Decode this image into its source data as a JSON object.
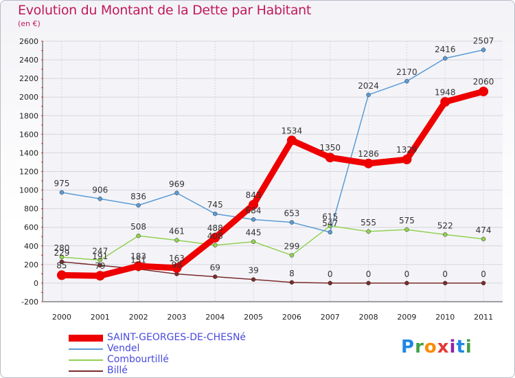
{
  "header": {
    "title": "Evolution du Montant de la Dette par Habitant",
    "subtitle": "(en €)"
  },
  "logo": {
    "text": "Proxiti",
    "colors": [
      "#1e88e5",
      "#43a047",
      "#fb8c00",
      "#e53935",
      "#8e24aa",
      "#1e88e5",
      "#43a047"
    ]
  },
  "chart_data": {
    "type": "line",
    "title": "Evolution du Montant de la Dette par Habitant",
    "subtitle": "(en €)",
    "xlabel": "",
    "ylabel": "",
    "x": [
      "2000",
      "2001",
      "2002",
      "2003",
      "2004",
      "2005",
      "2006",
      "2007",
      "2008",
      "2009",
      "2010",
      "2011"
    ],
    "ylim": [
      -200,
      2600
    ],
    "yticks": [
      -200,
      0,
      200,
      400,
      600,
      800,
      1000,
      1200,
      1400,
      1600,
      1800,
      2000,
      2200,
      2400,
      2600
    ],
    "grid": true,
    "legend": "bottom-left",
    "series": [
      {
        "name": "SAINT-GEORGES-DE-CHESNé",
        "color": "#ee0000",
        "values": [
          85,
          79,
          183,
          163,
          488,
          843,
          1534,
          1350,
          1286,
          1329,
          1948,
          2060
        ],
        "labels": [
          "85",
          "79",
          "183",
          "163",
          "488",
          "843",
          "1534",
          "1350",
          "1286",
          "1329",
          "1948",
          "2060"
        ]
      },
      {
        "name": "Vendel",
        "color": "#5b9bd5",
        "values": [
          975,
          906,
          836,
          969,
          745,
          684,
          653,
          547,
          2024,
          2170,
          2416,
          2507
        ],
        "labels": [
          "975",
          "906",
          "836",
          "969",
          "745",
          "684",
          "653",
          "547",
          "2024",
          "2170",
          "2416",
          "2507"
        ]
      },
      {
        "name": "Combourtillé",
        "color": "#92d050",
        "values": [
          280,
          247,
          508,
          461,
          408,
          445,
          299,
          615,
          555,
          575,
          522,
          474
        ],
        "labels": [
          "280",
          "247",
          "508",
          "461",
          "408",
          "445",
          "299",
          "615",
          "555",
          "575",
          "522",
          "474"
        ]
      },
      {
        "name": "Billé",
        "color": "#7b2c2c",
        "values": [
          229,
          191,
          151,
          98,
          69,
          39,
          8,
          0,
          0,
          0,
          0,
          0
        ],
        "labels": [
          "229",
          "191",
          "151",
          "98",
          "69",
          "39",
          "8",
          "0",
          "0",
          "0",
          "0",
          "0"
        ]
      }
    ]
  }
}
